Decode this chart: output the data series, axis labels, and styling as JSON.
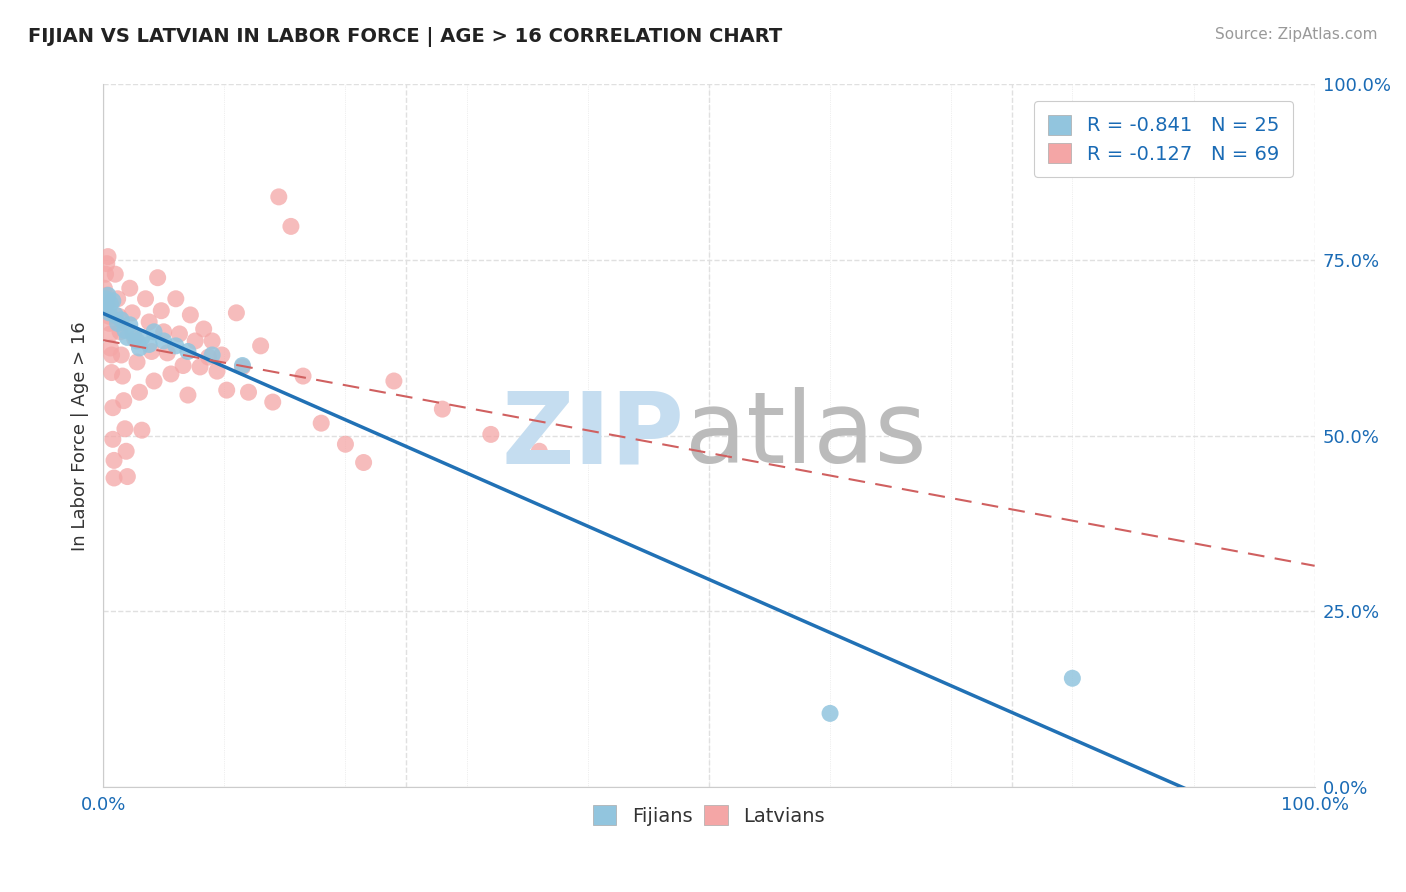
{
  "title": "FIJIAN VS LATVIAN IN LABOR FORCE | AGE > 16 CORRELATION CHART",
  "source": "Source: ZipAtlas.com",
  "ylabel": "In Labor Force | Age > 16",
  "xlim": [
    0.0,
    1.0
  ],
  "ylim": [
    0.0,
    1.0
  ],
  "x_ticks": [
    0.0,
    0.1,
    0.2,
    0.3,
    0.4,
    0.5,
    0.6,
    0.7,
    0.8,
    0.9,
    1.0
  ],
  "x_tick_labels_show": {
    "0.0": "0.0%",
    "1.0": "100.0%"
  },
  "y_ticks": [
    0.0,
    0.25,
    0.5,
    0.75,
    1.0
  ],
  "y_tick_labels": [
    "0.0%",
    "25.0%",
    "50.0%",
    "75.0%",
    "100.0%"
  ],
  "fijian_color": "#92c5de",
  "latvian_color": "#f4a6a6",
  "fijian_R": -0.841,
  "fijian_N": 25,
  "latvian_R": -0.127,
  "latvian_N": 69,
  "legend_color": "#1a6bb5",
  "fijian_scatter": [
    [
      0.002,
      0.695
    ],
    [
      0.003,
      0.685
    ],
    [
      0.004,
      0.7
    ],
    [
      0.005,
      0.675
    ],
    [
      0.006,
      0.688
    ],
    [
      0.008,
      0.692
    ],
    [
      0.01,
      0.672
    ],
    [
      0.012,
      0.66
    ],
    [
      0.015,
      0.665
    ],
    [
      0.018,
      0.65
    ],
    [
      0.02,
      0.64
    ],
    [
      0.022,
      0.658
    ],
    [
      0.025,
      0.645
    ],
    [
      0.028,
      0.635
    ],
    [
      0.03,
      0.625
    ],
    [
      0.032,
      0.64
    ],
    [
      0.038,
      0.63
    ],
    [
      0.042,
      0.648
    ],
    [
      0.05,
      0.635
    ],
    [
      0.06,
      0.628
    ],
    [
      0.07,
      0.62
    ],
    [
      0.09,
      0.615
    ],
    [
      0.115,
      0.6
    ],
    [
      0.6,
      0.105
    ],
    [
      0.8,
      0.155
    ]
  ],
  "latvian_scatter": [
    [
      0.001,
      0.71
    ],
    [
      0.002,
      0.73
    ],
    [
      0.003,
      0.7
    ],
    [
      0.003,
      0.745
    ],
    [
      0.004,
      0.755
    ],
    [
      0.004,
      0.69
    ],
    [
      0.005,
      0.67
    ],
    [
      0.005,
      0.66
    ],
    [
      0.006,
      0.645
    ],
    [
      0.006,
      0.625
    ],
    [
      0.007,
      0.615
    ],
    [
      0.007,
      0.59
    ],
    [
      0.008,
      0.54
    ],
    [
      0.008,
      0.495
    ],
    [
      0.009,
      0.465
    ],
    [
      0.009,
      0.44
    ],
    [
      0.01,
      0.73
    ],
    [
      0.012,
      0.695
    ],
    [
      0.013,
      0.67
    ],
    [
      0.014,
      0.648
    ],
    [
      0.015,
      0.615
    ],
    [
      0.016,
      0.585
    ],
    [
      0.017,
      0.55
    ],
    [
      0.018,
      0.51
    ],
    [
      0.019,
      0.478
    ],
    [
      0.02,
      0.442
    ],
    [
      0.022,
      0.71
    ],
    [
      0.024,
      0.675
    ],
    [
      0.026,
      0.638
    ],
    [
      0.028,
      0.605
    ],
    [
      0.03,
      0.562
    ],
    [
      0.032,
      0.508
    ],
    [
      0.035,
      0.695
    ],
    [
      0.038,
      0.662
    ],
    [
      0.04,
      0.62
    ],
    [
      0.042,
      0.578
    ],
    [
      0.045,
      0.725
    ],
    [
      0.048,
      0.678
    ],
    [
      0.05,
      0.648
    ],
    [
      0.053,
      0.618
    ],
    [
      0.056,
      0.588
    ],
    [
      0.06,
      0.695
    ],
    [
      0.063,
      0.645
    ],
    [
      0.066,
      0.6
    ],
    [
      0.07,
      0.558
    ],
    [
      0.072,
      0.672
    ],
    [
      0.076,
      0.635
    ],
    [
      0.08,
      0.598
    ],
    [
      0.083,
      0.652
    ],
    [
      0.087,
      0.612
    ],
    [
      0.09,
      0.635
    ],
    [
      0.094,
      0.592
    ],
    [
      0.098,
      0.615
    ],
    [
      0.102,
      0.565
    ],
    [
      0.11,
      0.675
    ],
    [
      0.115,
      0.598
    ],
    [
      0.12,
      0.562
    ],
    [
      0.13,
      0.628
    ],
    [
      0.14,
      0.548
    ],
    [
      0.145,
      0.84
    ],
    [
      0.155,
      0.798
    ],
    [
      0.165,
      0.585
    ],
    [
      0.18,
      0.518
    ],
    [
      0.2,
      0.488
    ],
    [
      0.215,
      0.462
    ],
    [
      0.24,
      0.578
    ],
    [
      0.28,
      0.538
    ],
    [
      0.32,
      0.502
    ],
    [
      0.36,
      0.478
    ]
  ],
  "title_color": "#222222",
  "source_color": "#999999",
  "watermark_zip_color": "#c5ddf0",
  "watermark_atlas_color": "#bbbbbb",
  "tick_color": "#1a6bb5",
  "grid_color": "#e0e0e0",
  "fijian_line_color": "#2171b5",
  "latvian_line_color": "#d06060",
  "latvian_line_style": "dashed"
}
